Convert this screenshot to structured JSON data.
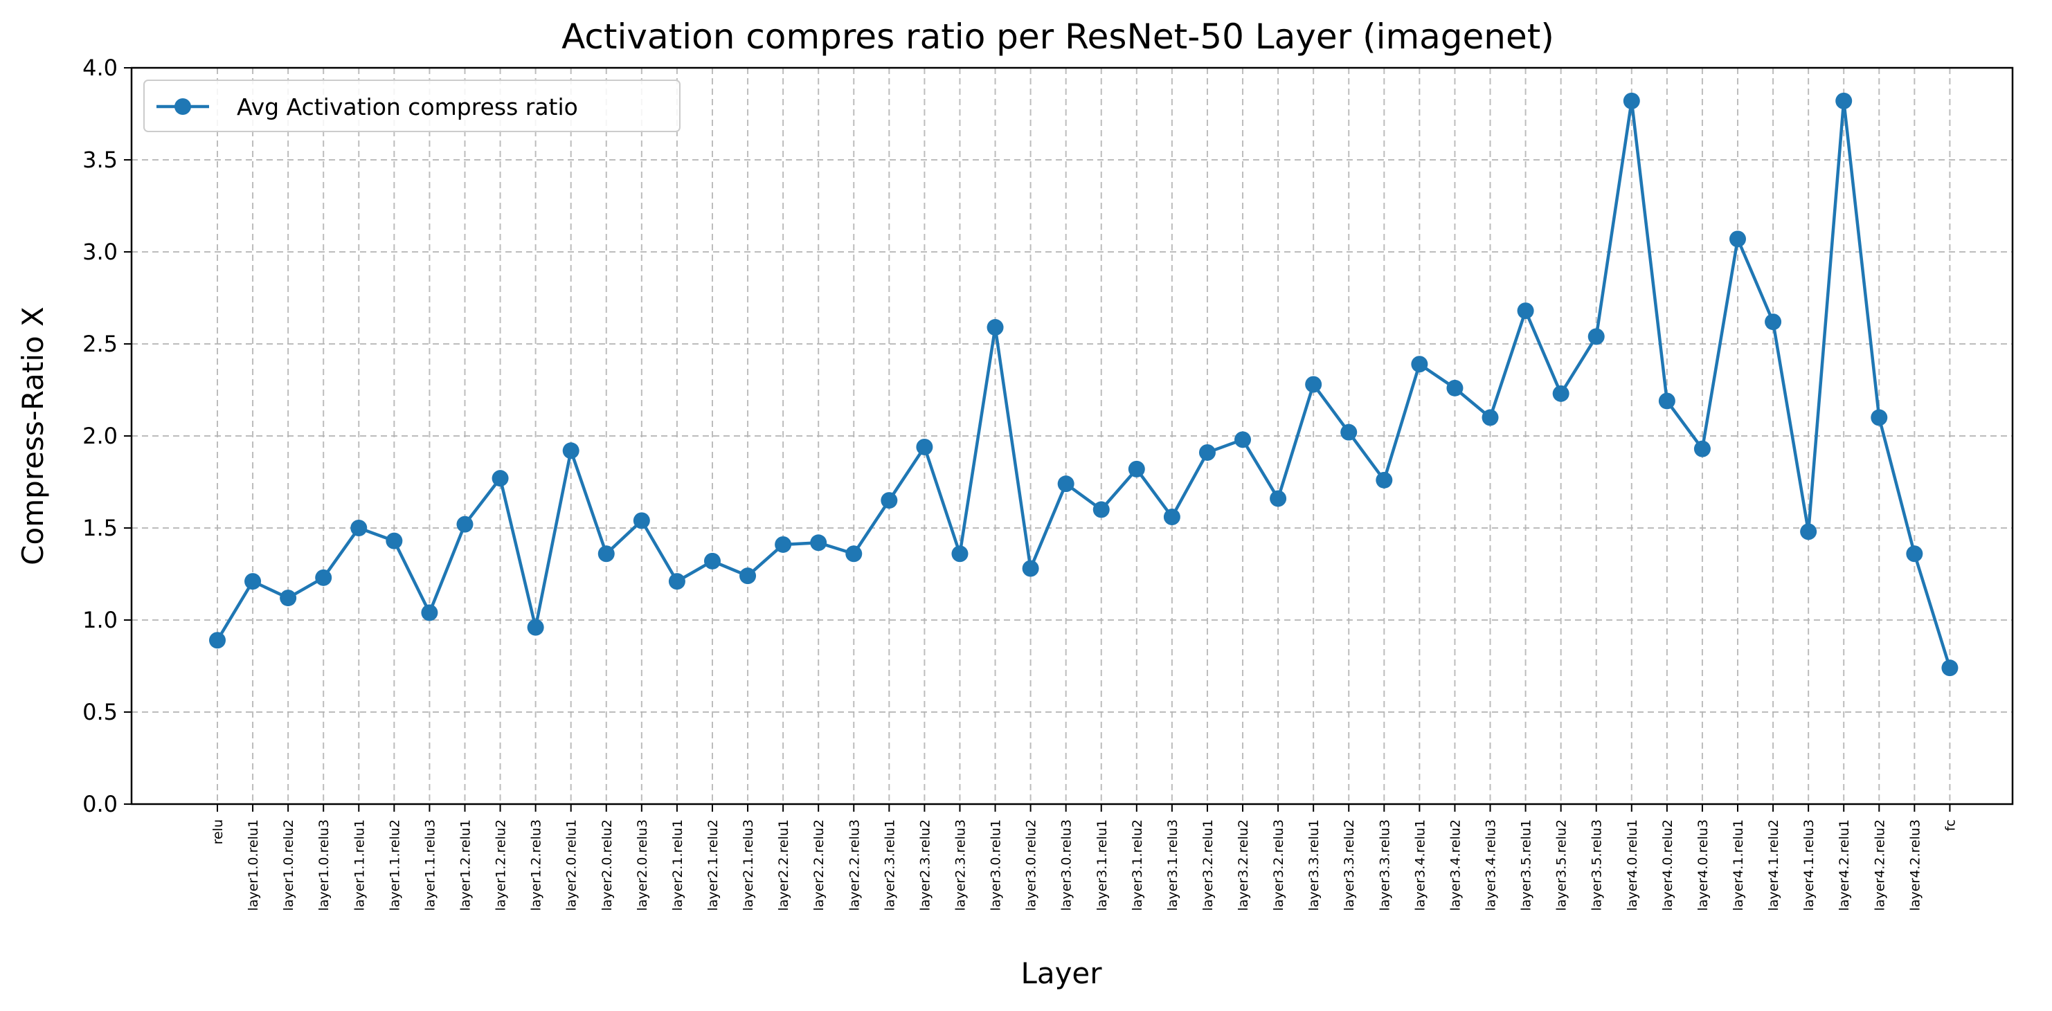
{
  "chart_data": {
    "type": "line",
    "title": "Activation compres ratio per ResNet-50 Layer (imagenet)",
    "xlabel": "Layer",
    "ylabel": "Compress-Ratio X",
    "ylim": [
      0,
      4.0
    ],
    "yticks": [
      "0.0",
      "0.5",
      "1.0",
      "1.5",
      "2.0",
      "2.5",
      "3.0",
      "3.5",
      "4.0"
    ],
    "grid": true,
    "legend_position": "top-left",
    "color": "#1f77b4",
    "categories": [
      "relu",
      "layer1.0.relu1",
      "layer1.0.relu2",
      "layer1.0.relu3",
      "layer1.1.relu1",
      "layer1.1.relu2",
      "layer1.1.relu3",
      "layer1.2.relu1",
      "layer1.2.relu2",
      "layer1.2.relu3",
      "layer2.0.relu1",
      "layer2.0.relu2",
      "layer2.0.relu3",
      "layer2.1.relu1",
      "layer2.1.relu2",
      "layer2.1.relu3",
      "layer2.2.relu1",
      "layer2.2.relu2",
      "layer2.2.relu3",
      "layer2.3.relu1",
      "layer2.3.relu2",
      "layer2.3.relu3",
      "layer3.0.relu1",
      "layer3.0.relu2",
      "layer3.0.relu3",
      "layer3.1.relu1",
      "layer3.1.relu2",
      "layer3.1.relu3",
      "layer3.2.relu1",
      "layer3.2.relu2",
      "layer3.2.relu3",
      "layer3.3.relu1",
      "layer3.3.relu2",
      "layer3.3.relu3",
      "layer3.4.relu1",
      "layer3.4.relu2",
      "layer3.4.relu3",
      "layer3.5.relu1",
      "layer3.5.relu2",
      "layer3.5.relu3",
      "layer4.0.relu1",
      "layer4.0.relu2",
      "layer4.0.relu3",
      "layer4.1.relu1",
      "layer4.1.relu2",
      "layer4.1.relu3",
      "layer4.2.relu1",
      "layer4.2.relu2",
      "layer4.2.relu3",
      "fc"
    ],
    "series": [
      {
        "name": "Avg Activation compress ratio",
        "values": [
          0.89,
          1.21,
          1.12,
          1.23,
          1.5,
          1.43,
          1.04,
          1.52,
          1.77,
          0.96,
          1.92,
          1.36,
          1.54,
          1.21,
          1.32,
          1.24,
          1.41,
          1.42,
          1.36,
          1.65,
          1.94,
          1.36,
          2.59,
          1.28,
          1.74,
          1.6,
          1.82,
          1.56,
          1.91,
          1.98,
          1.66,
          2.28,
          2.02,
          1.76,
          2.39,
          2.26,
          2.1,
          2.68,
          2.23,
          2.54,
          3.82,
          2.19,
          1.93,
          3.07,
          2.62,
          1.48,
          3.82,
          2.1,
          1.36,
          0.74
        ]
      }
    ]
  }
}
